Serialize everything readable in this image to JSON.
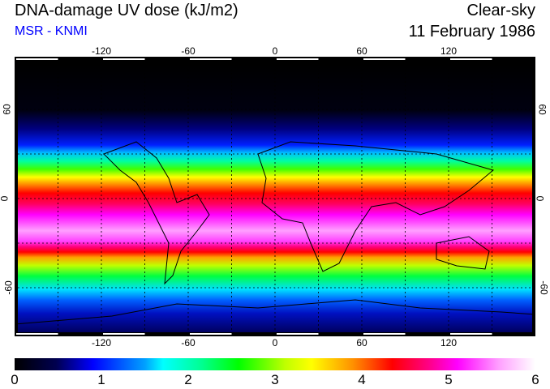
{
  "header": {
    "title": "DNA-damage UV dose (kJ/m2)",
    "source": "MSR - KNMI",
    "condition": "Clear-sky",
    "date": "11 February 1986"
  },
  "map": {
    "lon_ticks": [
      "-120",
      "-60",
      "0",
      "60",
      "120"
    ],
    "lon_values": [
      -120,
      -60,
      0,
      60,
      120
    ],
    "lat_ticks": [
      "60",
      "0",
      "-60"
    ],
    "lat_values": [
      60,
      0,
      -60
    ]
  },
  "colorbar": {
    "labels": [
      "0",
      "1",
      "2",
      "3",
      "4",
      "5",
      "6"
    ],
    "values": [
      0,
      1,
      2,
      3,
      4,
      5,
      6
    ],
    "colors": [
      "#000000",
      "#0000ff",
      "#00ffff",
      "#00ff00",
      "#ffff00",
      "#ff0000",
      "#ff00ff",
      "#ffffff"
    ]
  }
}
